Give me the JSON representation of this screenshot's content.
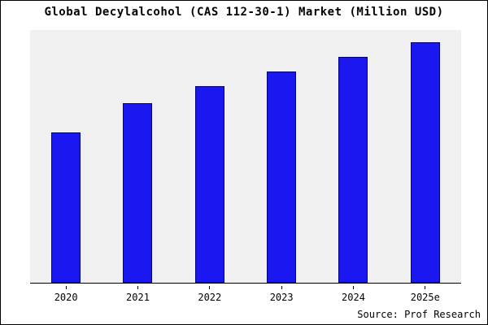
{
  "chart_data": {
    "type": "bar",
    "title": "Global Decylalcohol (CAS 112-30-1) Market (Million USD)",
    "categories": [
      "2020",
      "2021",
      "2022",
      "2023",
      "2024",
      "2025e"
    ],
    "values": [
      62,
      74,
      81,
      87,
      93,
      99
    ],
    "xlabel": "",
    "ylabel": "",
    "ylim": [
      0,
      104
    ],
    "grid": false,
    "legend": "none",
    "bar_color": "#1a17f0",
    "bar_border_color": "#000080",
    "plot_background": "#f0f0f0",
    "source_note": "Source: Prof Research"
  }
}
